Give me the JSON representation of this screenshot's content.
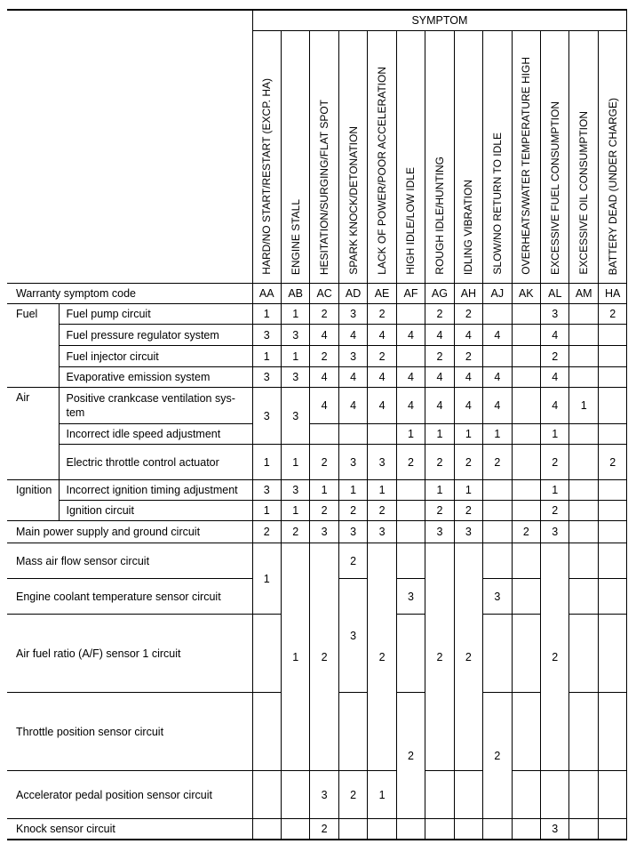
{
  "header": {
    "symptom": "SYMPTOM",
    "symptoms": [
      "HARD/NO START/RESTART (EXCP. HA)",
      "ENGINE STALL",
      "HESITATION/SURGING/FLAT SPOT",
      "SPARK KNOCK/DETONATION",
      "LACK OF POWER/POOR ACCELERATION",
      "HIGH IDLE/LOW IDLE",
      "ROUGH IDLE/HUNTING",
      "IDLING VIBRATION",
      "SLOW/NO RETURN TO IDLE",
      "OVERHEATS/WATER TEMPERATURE HIGH",
      "EXCESSIVE FUEL CONSUMPTION",
      "EXCESSIVE OIL CONSUMPTION",
      "BATTERY DEAD (UNDER CHARGE)"
    ],
    "code_label": "Warranty symptom code",
    "codes": [
      "AA",
      "AB",
      "AC",
      "AD",
      "AE",
      "AF",
      "AG",
      "AH",
      "AJ",
      "AK",
      "AL",
      "AM",
      "HA"
    ]
  },
  "groups": [
    "Fuel",
    "Air",
    "Ignition"
  ],
  "rows": [
    {
      "item": "Fuel pump circuit",
      "values": [
        "1",
        "1",
        "2",
        "3",
        "2",
        "",
        "2",
        "2",
        "",
        "",
        "3",
        "",
        "2"
      ]
    },
    {
      "item": "Fuel pressure regulator system",
      "values": [
        "3",
        "3",
        "4",
        "4",
        "4",
        "4",
        "4",
        "4",
        "4",
        "",
        "4",
        "",
        ""
      ]
    },
    {
      "item": "Fuel injector circuit",
      "values": [
        "1",
        "1",
        "2",
        "3",
        "2",
        "",
        "2",
        "2",
        "",
        "",
        "2",
        "",
        ""
      ]
    },
    {
      "item": "Evaporative emission system",
      "values": [
        "3",
        "3",
        "4",
        "4",
        "4",
        "4",
        "4",
        "4",
        "4",
        "",
        "4",
        "",
        ""
      ]
    },
    {
      "item": "Positive crankcase ventilation sys-tem",
      "values": [
        "3",
        "3",
        "4",
        "4",
        "4",
        "4",
        "4",
        "4",
        "4",
        "",
        "4",
        "1",
        ""
      ]
    },
    {
      "item": "Incorrect idle speed adjustment",
      "values": [
        null,
        null,
        "",
        "",
        "",
        "1",
        "1",
        "1",
        "1",
        "",
        "1",
        "",
        ""
      ]
    },
    {
      "item": "Electric throttle control actuator",
      "values": [
        "1",
        "1",
        "2",
        "3",
        "3",
        "2",
        "2",
        "2",
        "2",
        "",
        "2",
        "",
        "2"
      ]
    },
    {
      "item": "Incorrect ignition timing adjustment",
      "values": [
        "3",
        "3",
        "1",
        "1",
        "1",
        "",
        "1",
        "1",
        "",
        "",
        "1",
        "",
        ""
      ]
    },
    {
      "item": "Ignition circuit",
      "values": [
        "1",
        "1",
        "2",
        "2",
        "2",
        "",
        "2",
        "2",
        "",
        "",
        "2",
        "",
        ""
      ]
    },
    {
      "item": "Main power supply and ground circuit",
      "values": [
        "2",
        "2",
        "3",
        "3",
        "3",
        "",
        "3",
        "3",
        "",
        "2",
        "3",
        "",
        ""
      ]
    },
    {
      "item": "Mass air flow sensor circuit",
      "values": [
        "1",
        "1",
        "2",
        "2",
        "2",
        "",
        "2",
        "2",
        "",
        "",
        "2",
        "",
        ""
      ]
    },
    {
      "item": "Engine coolant temperature sensor circuit",
      "values": [
        null,
        null,
        null,
        "3",
        null,
        "3",
        null,
        null,
        "3",
        "",
        null,
        "",
        ""
      ]
    },
    {
      "item": "Air fuel ratio (A/F) sensor 1 circuit",
      "values": [
        "",
        null,
        null,
        null,
        null,
        "",
        null,
        null,
        "",
        "",
        null,
        "",
        ""
      ]
    },
    {
      "item": "Throttle position sensor circuit",
      "values": [
        "",
        null,
        null,
        "",
        null,
        "2",
        null,
        null,
        "2",
        "",
        null,
        "",
        ""
      ]
    },
    {
      "item": "Accelerator pedal position sensor circuit",
      "values": [
        "",
        "",
        "3",
        "2",
        "1",
        null,
        "",
        "",
        null,
        "",
        "",
        "",
        ""
      ]
    },
    {
      "item": "Knock sensor circuit",
      "values": [
        "",
        "",
        "2",
        "",
        "",
        "",
        "",
        "",
        "",
        "",
        "3",
        "",
        ""
      ]
    }
  ]
}
